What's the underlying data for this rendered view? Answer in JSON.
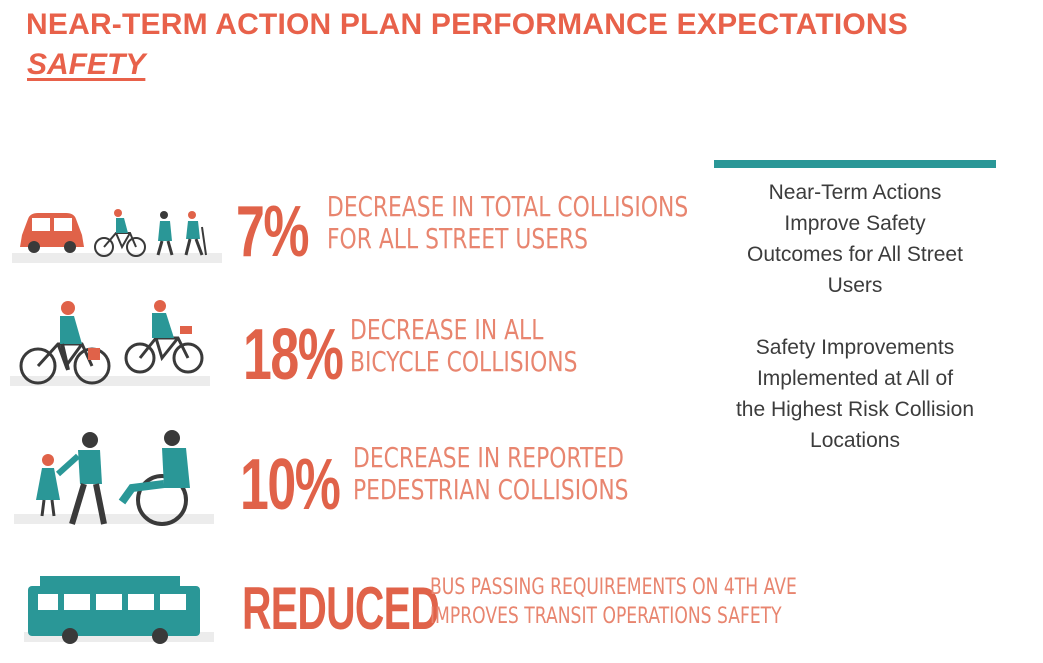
{
  "title": "NEAR-TERM ACTION PLAN PERFORMANCE EXPECTATIONS",
  "subtitle": "SAFETY",
  "metrics": [
    {
      "value": "7%",
      "line1": "DECREASE IN TOTAL COLLISIONS",
      "line2": "FOR ALL STREET USERS",
      "icon": "car-bike-pedestrian-icon"
    },
    {
      "value": "18%",
      "line1": "DECREASE IN ALL",
      "line2": "BICYCLE COLLISIONS",
      "icon": "cyclists-icon"
    },
    {
      "value": "10%",
      "line1": "DECREASE IN REPORTED",
      "line2": "PEDESTRIAN COLLISIONS",
      "icon": "pedestrians-wheelchair-icon"
    },
    {
      "value": "REDUCED",
      "line1": "BUS PASSING REQUIREMENTS ON 4TH AVE",
      "line2": "IMPROVES TRANSIT OPERATIONS SAFETY",
      "icon": "bus-icon"
    }
  ],
  "sidebar": {
    "block1": [
      "Near-Term Actions",
      "Improve Safety",
      "Outcomes for All Street",
      "Users"
    ],
    "block2": [
      "Safety Improvements",
      "Implemented at All of",
      "the Highest Risk Collision",
      "Locations"
    ]
  },
  "colors": {
    "accent": "#e8614a",
    "teal": "#2a9797",
    "dark": "#3c3c3c"
  }
}
